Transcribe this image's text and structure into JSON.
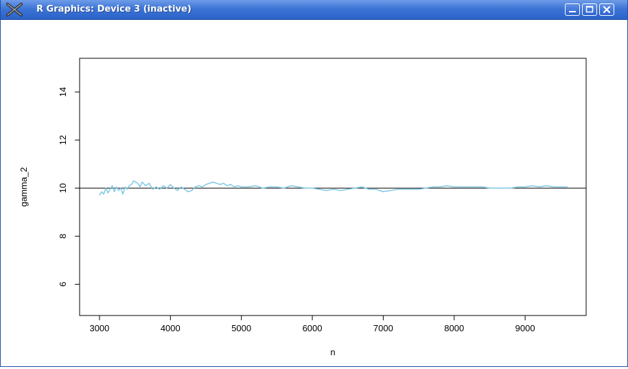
{
  "window": {
    "title": "R Graphics: Device 3 (inactive)",
    "icon": "x-logo-icon",
    "buttons": [
      "minimize-icon",
      "maximize-icon",
      "close-icon"
    ]
  },
  "chart_data": {
    "type": "line",
    "xlabel": "n",
    "ylabel": "gamma_2",
    "xlim": [
      2720,
      9860
    ],
    "ylim": [
      4.7,
      15.4
    ],
    "xticks": [
      3000,
      4000,
      5000,
      6000,
      7000,
      8000,
      9000
    ],
    "xtick_labels": [
      "3000",
      "4000",
      "5000",
      "6000",
      "7000",
      "8000",
      "9000"
    ],
    "yticks": [
      6,
      8,
      10,
      12,
      14
    ],
    "ytick_labels": [
      "6",
      "8",
      "10",
      "12",
      "14"
    ],
    "reference_line_y": 10,
    "series_color": "#7ec8e3",
    "reference_color": "#000000",
    "series": [
      {
        "x": [
          3000,
          3030,
          3060,
          3090,
          3120,
          3150,
          3180,
          3210,
          3240,
          3270,
          3300,
          3330,
          3360,
          3390,
          3420,
          3450,
          3480,
          3510,
          3540,
          3570,
          3600,
          3650,
          3700,
          3750,
          3800,
          3850,
          3900,
          3950,
          4000,
          4050,
          4100,
          4150,
          4200,
          4250,
          4300,
          4350,
          4400,
          4450,
          4500,
          4550,
          4600,
          4650,
          4700,
          4750,
          4800,
          4850,
          4900,
          4950,
          5000,
          5100,
          5200,
          5300,
          5400,
          5500,
          5600,
          5700,
          5800,
          5900,
          6000,
          6100,
          6200,
          6300,
          6400,
          6500,
          6600,
          6700,
          6800,
          6900,
          7000,
          7100,
          7200,
          7300,
          7400,
          7500,
          7600,
          7700,
          7800,
          7900,
          8000,
          8100,
          8200,
          8300,
          8400,
          8500,
          8600,
          8700,
          8800,
          8900,
          9000,
          9100,
          9200,
          9300,
          9400,
          9500,
          9600
        ],
        "y": [
          9.7,
          9.85,
          9.75,
          10.0,
          9.8,
          9.95,
          10.1,
          9.85,
          10.05,
          9.9,
          10.0,
          9.75,
          10.05,
          9.95,
          10.1,
          10.15,
          10.3,
          10.25,
          10.2,
          10.05,
          10.25,
          10.1,
          10.2,
          9.95,
          10.05,
          9.95,
          10.1,
          10.0,
          10.15,
          10.0,
          9.9,
          10.05,
          9.95,
          9.85,
          9.9,
          10.05,
          10.1,
          10.05,
          10.15,
          10.2,
          10.25,
          10.2,
          10.15,
          10.2,
          10.1,
          10.15,
          10.05,
          10.1,
          10.05,
          10.05,
          10.1,
          10.0,
          10.05,
          10.05,
          10.0,
          10.1,
          10.05,
          10.0,
          10.0,
          9.95,
          9.9,
          9.95,
          9.9,
          9.95,
          10.0,
          10.05,
          9.95,
          9.95,
          9.85,
          9.9,
          9.95,
          9.95,
          9.95,
          9.95,
          10.0,
          10.05,
          10.05,
          10.1,
          10.05,
          10.05,
          10.05,
          10.05,
          10.05,
          10.0,
          10.0,
          10.0,
          10.0,
          10.05,
          10.05,
          10.1,
          10.05,
          10.1,
          10.05,
          10.05,
          10.05
        ]
      }
    ]
  }
}
